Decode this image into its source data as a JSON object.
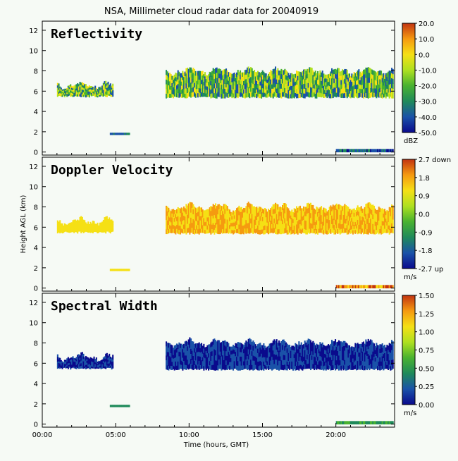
{
  "figure": {
    "title": "NSA, Millimeter cloud radar data for 20040919",
    "xlabel": "Time (hours, GMT)",
    "ylabel": "Height AGL (km)"
  },
  "chart_data": [
    {
      "type": "heatmap",
      "title": "Reflectivity",
      "xlim": [
        0,
        24
      ],
      "ylim": [
        -0.3,
        12.9
      ],
      "x_ticks": [
        "00:00",
        "05:00",
        "10:00",
        "15:00",
        "20:00"
      ],
      "y_ticks": [
        "0",
        "2",
        "4",
        "6",
        "8",
        "10",
        "12"
      ],
      "colorbar": {
        "labels": [
          "20.0",
          "10.0",
          "0.0",
          "-10.0",
          "-20.0",
          "-30.0",
          "-40.0",
          "-50.0"
        ],
        "unit": "dBZ"
      },
      "colors": [
        "#0a0a8c",
        "#1a52a8",
        "#1f8a5a",
        "#49b230",
        "#aee020",
        "#f5e015",
        "#f59a10",
        "#c23410"
      ],
      "features": [
        {
          "t0": 1.0,
          "t1": 4.8,
          "zbot": 5.5,
          "ztop": 6.6,
          "cmin": 1,
          "cmax": 5
        },
        {
          "t0": 4.6,
          "t1": 5.9,
          "zbot": 1.7,
          "ztop": 1.9,
          "cmin": 1,
          "cmax": 2
        },
        {
          "t0": 8.4,
          "t1": 23.9,
          "zbot": 5.4,
          "ztop": 8.0,
          "cmin": 1,
          "cmax": 5
        },
        {
          "t0": 20.0,
          "t1": 23.9,
          "zbot": 0.0,
          "ztop": 0.3,
          "cmin": 0,
          "cmax": 2
        }
      ]
    },
    {
      "type": "heatmap",
      "title": "Doppler Velocity",
      "xlim": [
        0,
        24
      ],
      "ylim": [
        -0.3,
        12.9
      ],
      "x_ticks": [
        "00:00",
        "05:00",
        "10:00",
        "15:00",
        "20:00"
      ],
      "y_ticks": [
        "0",
        "2",
        "4",
        "6",
        "8",
        "10",
        "12"
      ],
      "colorbar": {
        "labels": [
          "2.7 down",
          "1.8",
          "0.9",
          "0.0",
          "-0.9",
          "-1.8",
          "-2.7 up"
        ],
        "unit": "m/s"
      },
      "colors": [
        "#0a0a8c",
        "#1a52a8",
        "#1f8a5a",
        "#49b230",
        "#aee020",
        "#f5e015",
        "#f59a10",
        "#c23410"
      ],
      "features": [
        {
          "t0": 1.0,
          "t1": 4.8,
          "zbot": 5.5,
          "ztop": 6.6,
          "cmin": 5,
          "cmax": 5
        },
        {
          "t0": 4.6,
          "t1": 5.9,
          "zbot": 1.7,
          "ztop": 1.9,
          "cmin": 5,
          "cmax": 5
        },
        {
          "t0": 8.4,
          "t1": 23.9,
          "zbot": 5.4,
          "ztop": 8.0,
          "cmin": 5,
          "cmax": 6
        },
        {
          "t0": 20.0,
          "t1": 23.9,
          "zbot": 0.0,
          "ztop": 0.3,
          "cmin": 5,
          "cmax": 7
        }
      ]
    },
    {
      "type": "heatmap",
      "title": "Spectral Width",
      "xlim": [
        0,
        24
      ],
      "ylim": [
        -0.3,
        12.9
      ],
      "x_ticks": [
        "00:00",
        "05:00",
        "10:00",
        "15:00",
        "20:00"
      ],
      "y_ticks": [
        "0",
        "2",
        "4",
        "6",
        "8",
        "10",
        "12"
      ],
      "colorbar": {
        "labels": [
          "1.50",
          "1.25",
          "1.00",
          "0.75",
          "0.50",
          "0.25",
          "0.00"
        ],
        "unit": "m/s"
      },
      "colors": [
        "#0a0a8c",
        "#1a52a8",
        "#1f8a5a",
        "#49b230",
        "#aee020",
        "#f5e015",
        "#f59a10",
        "#c23410"
      ],
      "features": [
        {
          "t0": 1.0,
          "t1": 4.8,
          "zbot": 5.5,
          "ztop": 6.6,
          "cmin": 0,
          "cmax": 1
        },
        {
          "t0": 4.6,
          "t1": 5.9,
          "zbot": 1.7,
          "ztop": 1.9,
          "cmin": 2,
          "cmax": 2
        },
        {
          "t0": 8.4,
          "t1": 23.9,
          "zbot": 5.4,
          "ztop": 8.0,
          "cmin": 0,
          "cmax": 1
        },
        {
          "t0": 20.0,
          "t1": 23.9,
          "zbot": 0.0,
          "ztop": 0.3,
          "cmin": 2,
          "cmax": 3
        }
      ]
    }
  ]
}
